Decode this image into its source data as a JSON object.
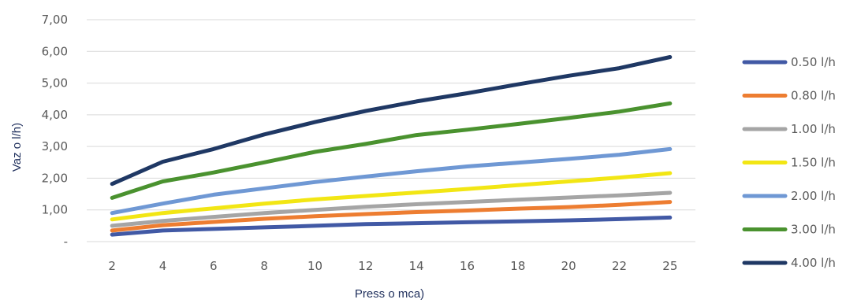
{
  "chart_data": {
    "type": "line",
    "x": [
      "2",
      "4",
      "6",
      "8",
      "10",
      "12",
      "14",
      "16",
      "18",
      "20",
      "22",
      "25"
    ],
    "xlabel": "Press o mca)",
    "ylabel": "Vaz o l/h)",
    "ylim": [
      0,
      7
    ],
    "yticks": [
      "-",
      "1,00",
      "2,00",
      "3,00",
      "4,00",
      "5,00",
      "6,00",
      "7,00"
    ],
    "grid": true,
    "legend_position": "right",
    "series": [
      {
        "name": "0.50 l/h",
        "color": "#4159a5",
        "values": [
          0.22,
          0.35,
          0.4,
          0.45,
          0.5,
          0.55,
          0.58,
          0.61,
          0.64,
          0.67,
          0.71,
          0.76
        ]
      },
      {
        "name": "0.80 l/h",
        "color": "#ed7d31",
        "values": [
          0.35,
          0.52,
          0.62,
          0.72,
          0.8,
          0.87,
          0.93,
          0.98,
          1.04,
          1.09,
          1.16,
          1.25
        ]
      },
      {
        "name": "1.00 l/h",
        "color": "#a5a5a5",
        "values": [
          0.5,
          0.65,
          0.78,
          0.9,
          1.0,
          1.1,
          1.18,
          1.25,
          1.32,
          1.39,
          1.46,
          1.54
        ]
      },
      {
        "name": "1.50 l/h",
        "color": "#f2e614",
        "values": [
          0.7,
          0.9,
          1.05,
          1.2,
          1.33,
          1.44,
          1.55,
          1.66,
          1.78,
          1.9,
          2.02,
          2.16
        ]
      },
      {
        "name": "2.00 l/h",
        "color": "#6f98d4",
        "values": [
          0.9,
          1.2,
          1.48,
          1.68,
          1.88,
          2.05,
          2.22,
          2.37,
          2.49,
          2.61,
          2.74,
          2.92
        ]
      },
      {
        "name": "3.00 l/h",
        "color": "#4a922f",
        "values": [
          1.38,
          1.9,
          2.18,
          2.5,
          2.83,
          3.08,
          3.36,
          3.53,
          3.71,
          3.9,
          4.1,
          4.36
        ]
      },
      {
        "name": "4.00 l/h",
        "color": "#1f3864",
        "values": [
          1.82,
          2.52,
          2.92,
          3.38,
          3.77,
          4.12,
          4.42,
          4.68,
          4.96,
          5.23,
          5.47,
          5.82
        ]
      }
    ]
  }
}
